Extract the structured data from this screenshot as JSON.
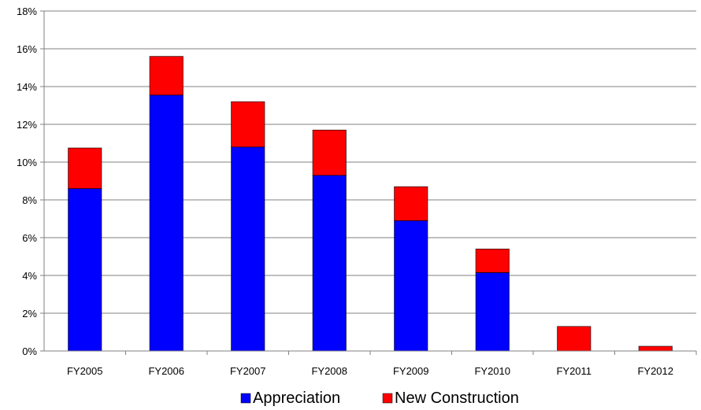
{
  "chart_data": {
    "type": "bar",
    "stacked": true,
    "categories": [
      "FY2005",
      "FY2006",
      "FY2007",
      "FY2008",
      "FY2009",
      "FY2010",
      "FY2011",
      "FY2012"
    ],
    "series": [
      {
        "name": "Appreciation",
        "color": "#0000ff",
        "values": [
          8.6,
          13.55,
          10.8,
          9.3,
          6.9,
          4.15,
          0,
          0
        ]
      },
      {
        "name": "New Construction",
        "color": "#ff0000",
        "values": [
          2.15,
          2.05,
          2.4,
          2.4,
          1.8,
          1.25,
          1.3,
          0.25
        ]
      }
    ],
    "ylim": [
      0,
      18
    ],
    "y_ticks": [
      "0%",
      "2%",
      "4%",
      "6%",
      "8%",
      "10%",
      "12%",
      "14%",
      "16%",
      "18%"
    ],
    "grid": true,
    "legend_position": "bottom",
    "title": "",
    "xlabel": "",
    "ylabel": ""
  }
}
